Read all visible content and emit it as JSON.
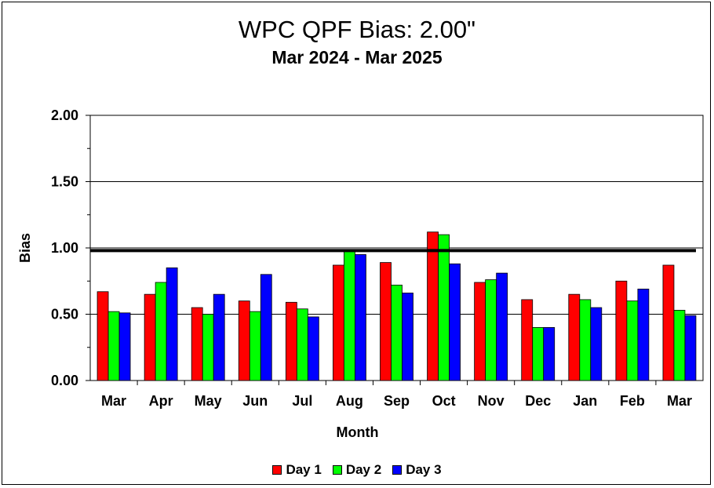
{
  "chart_data": {
    "type": "bar",
    "title": "WPC QPF Bias:  2.00\"",
    "subtitle": "Mar 2024 - Mar 2025",
    "xlabel": "Month",
    "ylabel": "Bias",
    "ylim": [
      0,
      2
    ],
    "yticks": [
      "0.00",
      "0.50",
      "1.00",
      "1.50",
      "2.00"
    ],
    "reference_line": 0.98,
    "grid": "horizontal",
    "legend_position": "bottom",
    "categories": [
      "Mar",
      "Apr",
      "May",
      "Jun",
      "Jul",
      "Aug",
      "Sep",
      "Oct",
      "Nov",
      "Dec",
      "Jan",
      "Feb",
      "Mar"
    ],
    "series": [
      {
        "name": "Day 1",
        "color": "#ff0000",
        "values": [
          0.67,
          0.65,
          0.55,
          0.6,
          0.59,
          0.87,
          0.89,
          1.12,
          0.74,
          0.61,
          0.65,
          0.75,
          0.87
        ]
      },
      {
        "name": "Day 2",
        "color": "#00ff00",
        "values": [
          0.52,
          0.74,
          0.5,
          0.52,
          0.54,
          0.98,
          0.72,
          1.1,
          0.76,
          0.4,
          0.61,
          0.6,
          0.53
        ]
      },
      {
        "name": "Day 3",
        "color": "#0000ff",
        "values": [
          0.51,
          0.85,
          0.65,
          0.8,
          0.48,
          0.95,
          0.66,
          0.88,
          0.81,
          0.4,
          0.55,
          0.69,
          0.49
        ]
      }
    ]
  }
}
